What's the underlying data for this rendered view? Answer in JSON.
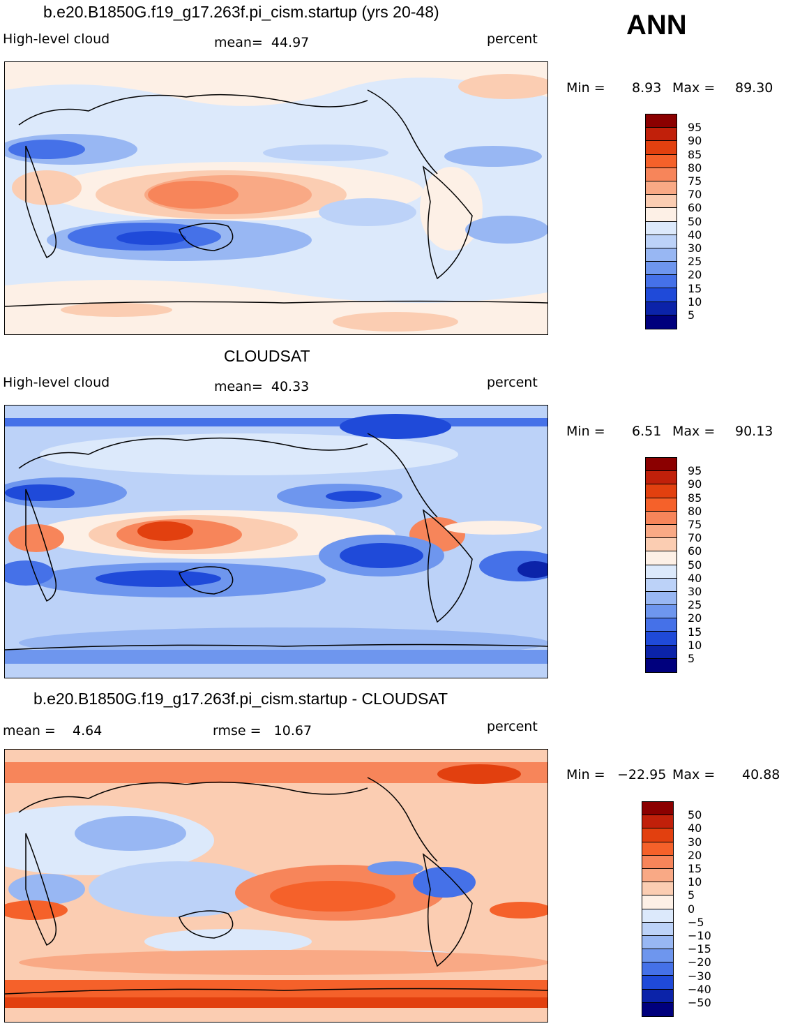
{
  "season": "ANN",
  "panels": [
    {
      "title": "b.e20.B1850G.f19_g17.263f.pi_cism.startup (yrs 20-48)",
      "left_label": "High-level cloud",
      "center_label": "mean=  44.97",
      "right_label": "percent",
      "min_label": "Min =",
      "min_value": "8.93",
      "max_label": "Max =",
      "max_value": "89.30",
      "colorbar_labels": [
        "95",
        "90",
        "85",
        "80",
        "75",
        "70",
        "60",
        "50",
        "40",
        "30",
        "25",
        "20",
        "15",
        "10",
        "5"
      ]
    },
    {
      "title": "CLOUDSAT",
      "left_label": "High-level cloud",
      "center_label": "mean=  40.33",
      "right_label": "percent",
      "min_label": "Min =",
      "min_value": "6.51",
      "max_label": "Max =",
      "max_value": "90.13",
      "colorbar_labels": [
        "95",
        "90",
        "85",
        "80",
        "75",
        "70",
        "60",
        "50",
        "40",
        "30",
        "25",
        "20",
        "15",
        "10",
        "5"
      ]
    },
    {
      "title": "b.e20.B1850G.f19_g17.263f.pi_cism.startup - CLOUDSAT",
      "left_label": "mean =    4.64",
      "center_label": "rmse =   10.67",
      "right_label": "percent",
      "min_label": "Min =",
      "min_value": "−22.95",
      "max_label": "Max =",
      "max_value": "40.88",
      "colorbar_labels": [
        "50",
        "40",
        "30",
        "20",
        "15",
        "10",
        "5",
        "0",
        "−5",
        "−10",
        "−15",
        "−20",
        "−30",
        "−40",
        "−50"
      ]
    }
  ],
  "colors": {
    "colorbar_16": [
      "#8b0000",
      "#c1200a",
      "#e2400f",
      "#f5612a",
      "#f7855a",
      "#f9a985",
      "#fbcdb2",
      "#fdf0e6",
      "#dce9fb",
      "#bcd2f8",
      "#98b7f3",
      "#6e96ee",
      "#4571e8",
      "#1f4ad9",
      "#0b23a9",
      "#00007d"
    ],
    "coast": "#000000"
  }
}
